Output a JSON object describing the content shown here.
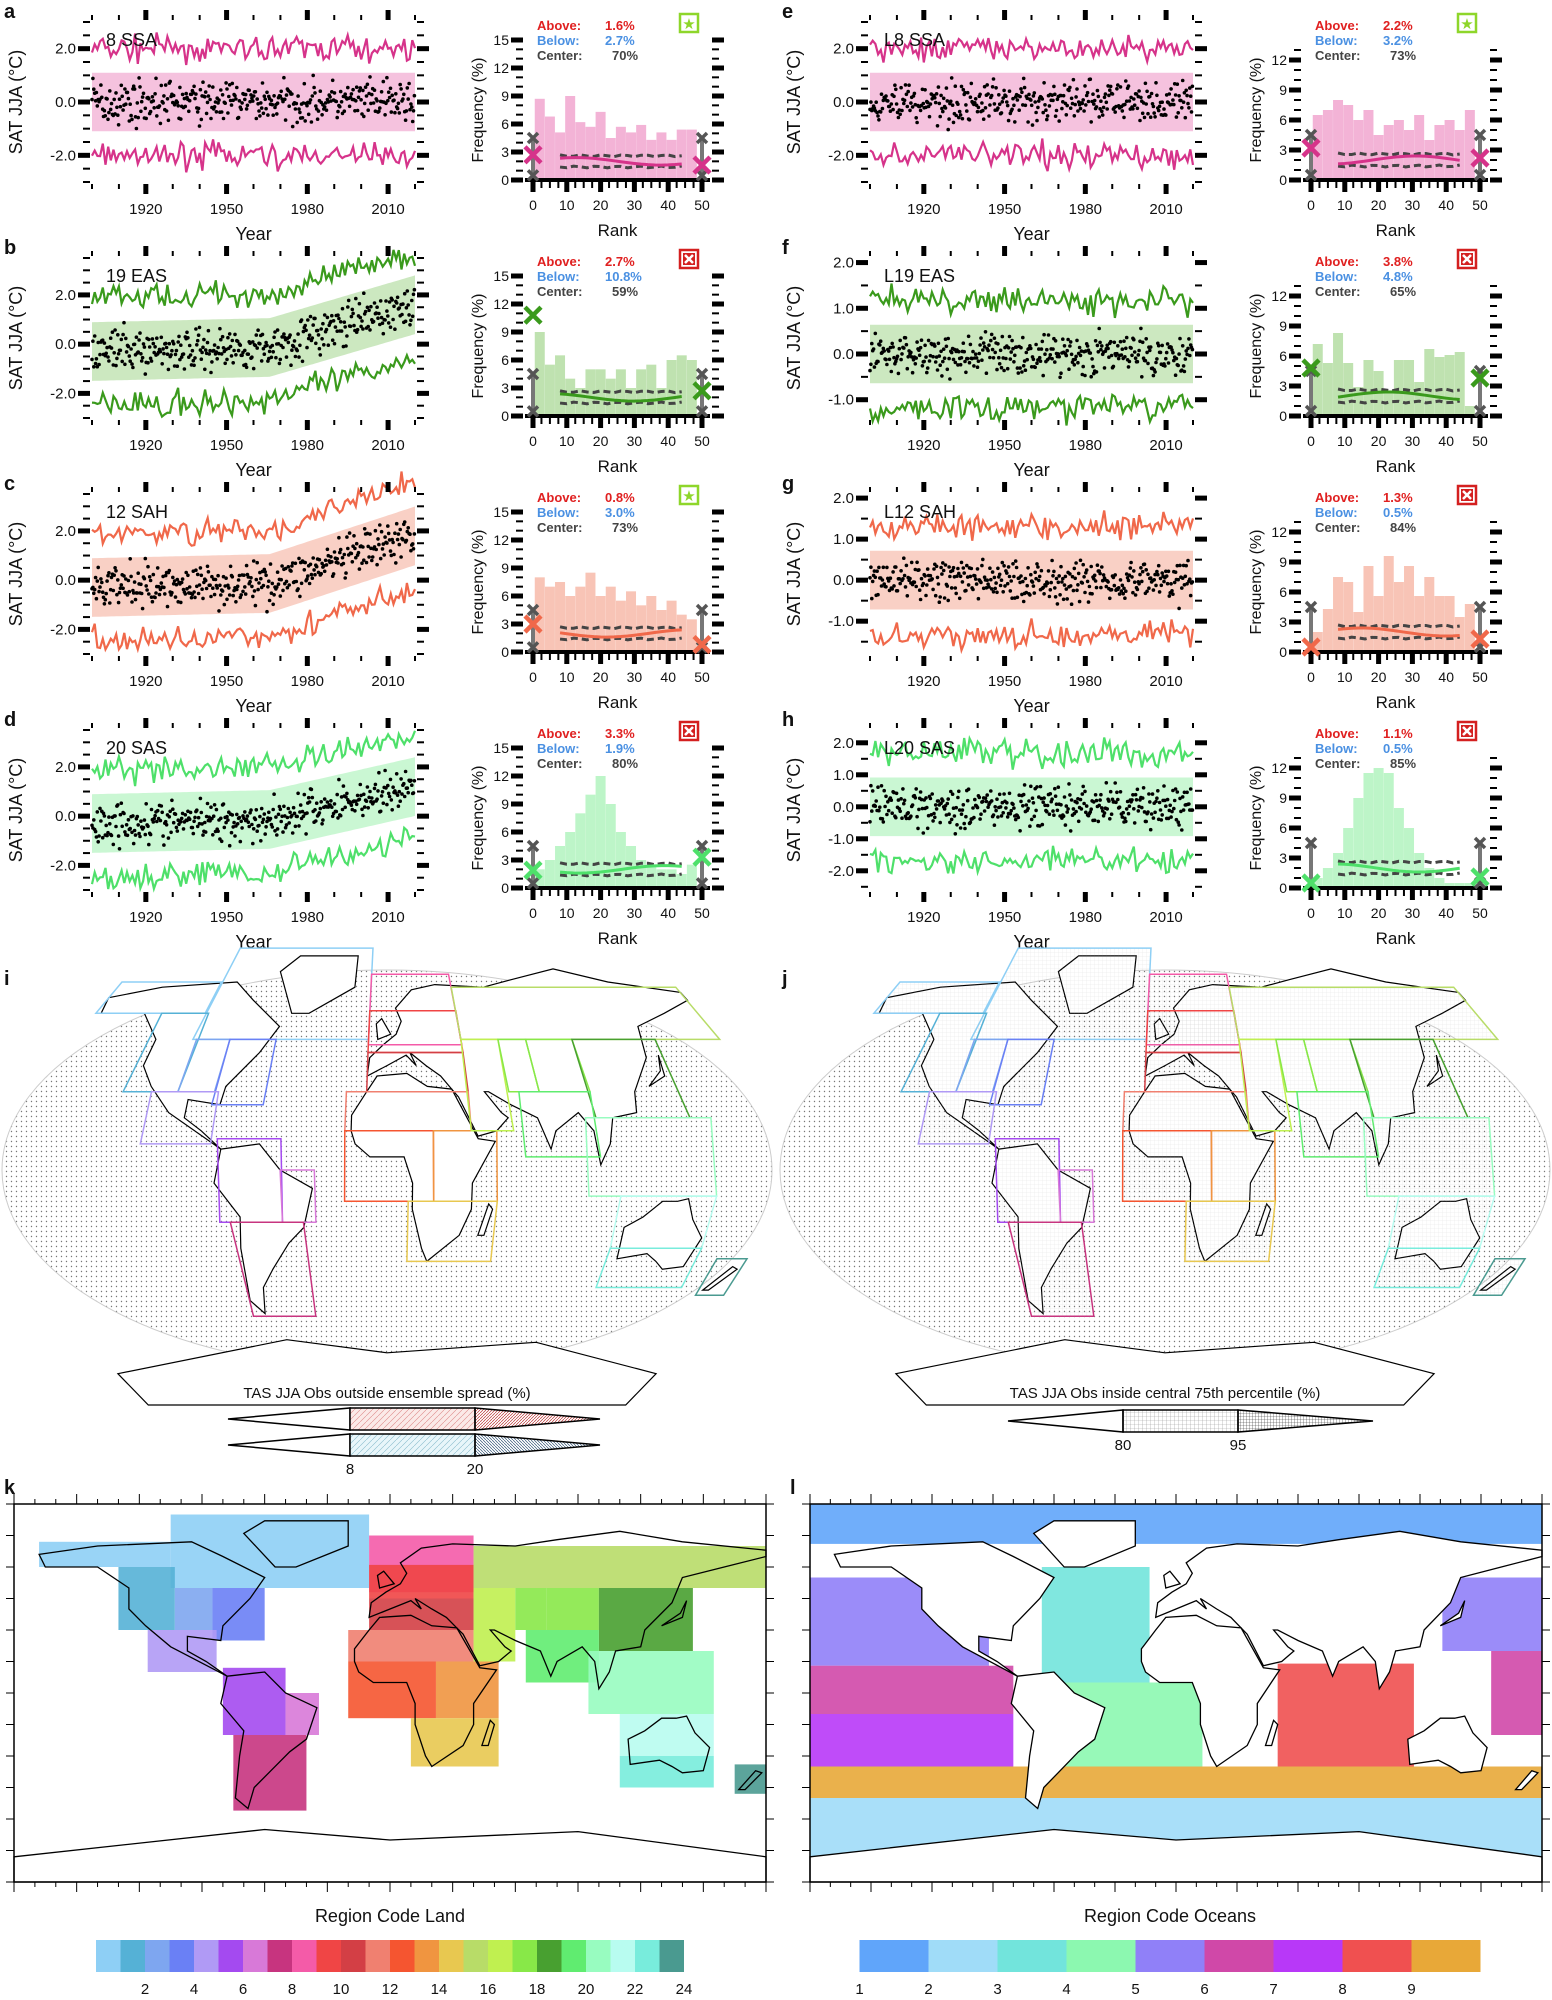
{
  "chart_data": {
    "type": "line",
    "time_series_common": {
      "xlabel": "Year",
      "ylabel": "SAT JJA (°C)",
      "xticks": [
        "1920",
        "1950",
        "1980",
        "2010"
      ],
      "xlim": [
        1900,
        2020
      ]
    },
    "rank_hist_common": {
      "xlabel": "Rank",
      "ylabel": "Frequency (%)",
      "xticks": [
        "0",
        "10",
        "20",
        "30",
        "40",
        "50"
      ],
      "above_label": "Above:",
      "below_label": "Below:",
      "center_label": "Center:"
    },
    "panels": [
      {
        "letter": "a",
        "label": "8 SSA",
        "color": "#d6338a",
        "light": "#f3b3d6",
        "trend": 0.0,
        "ylim": [
          -3,
          3
        ],
        "yticks": [
          "2.0",
          "0.0",
          "-2.0"
        ],
        "ytick_values": [
          2,
          0,
          -2
        ],
        "hist": {
          "above": "1.6%",
          "below": "2.7%",
          "center": "70%",
          "badge": "star",
          "ymax": 15,
          "yticks": [
            "0",
            "3",
            "6",
            "9",
            "12",
            "15"
          ],
          "bars": [
            8.7,
            6.8,
            5.1,
            9.0,
            6.2,
            5.7,
            7.3,
            4.5,
            5.7,
            5.1,
            5.9,
            4.3,
            5.1,
            4.3,
            5.4,
            5.4
          ],
          "obs_rank0": 2.7,
          "obs_rank50": 1.6
        }
      },
      {
        "letter": "b",
        "label": "19 EAS",
        "color": "#3a9a1c",
        "light": "#bfe2b0",
        "trend": 1.6,
        "ylim": [
          -3,
          3.5
        ],
        "yticks": [
          "2.0",
          "0.0",
          "-2.0"
        ],
        "ytick_values": [
          2,
          0,
          -2
        ],
        "hist": {
          "above": "2.7%",
          "below": "10.8%",
          "center": "59%",
          "badge": "cross",
          "ymax": 15,
          "yticks": [
            "0",
            "3",
            "6",
            "9",
            "12",
            "15"
          ],
          "bars": [
            9.0,
            5.5,
            6.5,
            4.0,
            3.0,
            5.0,
            5.0,
            4.0,
            5.0,
            3.0,
            5.0,
            5.5,
            3.0,
            6.0,
            6.5,
            6.0
          ],
          "obs_rank0": 10.8,
          "obs_rank50": 2.7
        }
      },
      {
        "letter": "c",
        "label": "12 SAH",
        "color": "#f0684a",
        "light": "#f8c4b6",
        "trend": 1.8,
        "ylim": [
          -3,
          3.5
        ],
        "yticks": [
          "2.0",
          "0.0",
          "-2.0"
        ],
        "ytick_values": [
          2,
          0,
          -2
        ],
        "hist": {
          "above": "0.8%",
          "below": "3.0%",
          "center": "73%",
          "badge": "star",
          "ymax": 15,
          "yticks": [
            "0",
            "3",
            "6",
            "9",
            "12",
            "15"
          ],
          "bars": [
            8.0,
            7.0,
            7.5,
            6.0,
            7.0,
            8.5,
            6.0,
            7.0,
            5.5,
            6.5,
            5.0,
            6.0,
            4.5,
            5.5,
            4.0,
            3.5
          ],
          "obs_rank0": 3.0,
          "obs_rank50": 0.8
        }
      },
      {
        "letter": "d",
        "label": "20 SAS",
        "color": "#4ee06a",
        "light": "#bdf5c8",
        "trend": 1.2,
        "ylim": [
          -3,
          3.5
        ],
        "yticks": [
          "2.0",
          "0.0",
          "-2.0"
        ],
        "ytick_values": [
          2,
          0,
          -2
        ],
        "hist": {
          "above": "3.3%",
          "below": "1.9%",
          "center": "80%",
          "badge": "cross",
          "ymax": 15,
          "yticks": [
            "0",
            "3",
            "6",
            "9",
            "12",
            "15"
          ],
          "bars": [
            2.0,
            3.0,
            4.5,
            6.0,
            8.0,
            10.0,
            12.0,
            9.0,
            6.0,
            4.5,
            3.0,
            2.5,
            2.0,
            2.0,
            1.5,
            2.5
          ],
          "obs_rank0": 1.9,
          "obs_rank50": 3.3
        }
      },
      {
        "letter": "e",
        "label": "L8 SSA",
        "color": "#d6338a",
        "light": "#f3b3d6",
        "trend": 0.0,
        "ylim": [
          -3,
          3
        ],
        "yticks": [
          "2.0",
          "0.0",
          "-2.0"
        ],
        "ytick_values": [
          2,
          0,
          -2
        ],
        "hist": {
          "above": "2.2%",
          "below": "3.2%",
          "center": "73%",
          "badge": "star",
          "ymax": 14,
          "yticks": [
            "0",
            "3",
            "6",
            "9",
            "12"
          ],
          "bars": [
            6.5,
            7.0,
            8.0,
            7.5,
            6.0,
            7.0,
            4.5,
            5.5,
            6.0,
            5.0,
            6.5,
            4.0,
            5.5,
            6.0,
            5.0,
            7.0
          ],
          "obs_rank0": 3.2,
          "obs_rank50": 2.2
        }
      },
      {
        "letter": "f",
        "label": "L19 EAS",
        "color": "#3a9a1c",
        "light": "#bfe2b0",
        "trend": 0.0,
        "ylim": [
          -1.4,
          2.1
        ],
        "yticks": [
          "2.0",
          "1.0",
          "0.0",
          "-1.0"
        ],
        "ytick_values": [
          2,
          1,
          0,
          -1
        ],
        "hist": {
          "above": "3.8%",
          "below": "4.8%",
          "center": "65%",
          "badge": "cross",
          "ymax": 14,
          "yticks": [
            "0",
            "3",
            "6",
            "9",
            "12"
          ],
          "bars": [
            7.2,
            5.3,
            8.3,
            5.3,
            2.9,
            5.6,
            4.5,
            2.5,
            5.6,
            5.6,
            3.4,
            6.7,
            5.9,
            6.1,
            6.4,
            1.0
          ],
          "obs_rank0": 4.8,
          "obs_rank50": 3.8
        }
      },
      {
        "letter": "g",
        "label": "L12 SAH",
        "color": "#f0684a",
        "light": "#f8c4b6",
        "trend": 0.0,
        "ylim": [
          -1.8,
          2.1
        ],
        "yticks": [
          "2.0",
          "1.0",
          "0.0",
          "-1.0"
        ],
        "ytick_values": [
          2,
          1,
          0,
          -1
        ],
        "hist": {
          "above": "1.3%",
          "below": "0.5%",
          "center": "84%",
          "badge": "cross",
          "ymax": 14,
          "yticks": [
            "0",
            "3",
            "6",
            "9",
            "12"
          ],
          "bars": [
            2.0,
            4.3,
            7.5,
            7.0,
            4.0,
            8.6,
            5.6,
            9.6,
            7.0,
            8.6,
            5.6,
            7.5,
            5.6,
            5.6,
            3.5,
            4.8
          ],
          "obs_rank0": 0.5,
          "obs_rank50": 1.3
        }
      },
      {
        "letter": "h",
        "label": "L20 SAS",
        "color": "#4ee06a",
        "light": "#bdf5c8",
        "trend": 0.0,
        "ylim": [
          -2.6,
          2.4
        ],
        "yticks": [
          "2.0",
          "1.0",
          "0.0",
          "-1.0",
          "-2.0"
        ],
        "ytick_values": [
          2,
          1,
          0,
          -1,
          -2
        ],
        "hist": {
          "above": "1.1%",
          "below": "0.5%",
          "center": "85%",
          "badge": "cross",
          "ymax": 14,
          "yticks": [
            "0",
            "3",
            "6",
            "9",
            "12"
          ],
          "bars": [
            1.0,
            2.0,
            3.5,
            6.0,
            9.0,
            11.5,
            12.0,
            11.5,
            8.0,
            6.0,
            3.5,
            2.0,
            1.0,
            0.5,
            0.5,
            0.5
          ],
          "obs_rank0": 0.5,
          "obs_rank50": 1.1
        }
      }
    ],
    "maps": {
      "i": {
        "letter": "i",
        "title": "TAS JJA Obs outside ensemble spread (%)",
        "ticks": [
          "8",
          "20"
        ]
      },
      "j": {
        "letter": "j",
        "title": "TAS JJA Obs inside central 75th percentile (%)",
        "ticks": [
          "80",
          "95"
        ]
      },
      "k": {
        "letter": "k",
        "title": "Region Code Land",
        "ticks": [
          "2",
          "4",
          "6",
          "8",
          "10",
          "12",
          "14",
          "16",
          "18",
          "20",
          "22",
          "24"
        ],
        "colors": [
          "#8ecff5",
          "#55b1d6",
          "#7ea6f0",
          "#6a80f5",
          "#b09af5",
          "#a44af0",
          "#d879d8",
          "#c7347f",
          "#f45ba8",
          "#f04545",
          "#d33f45",
          "#f08070",
          "#f55530",
          "#f09540",
          "#e8c850",
          "#b8dc68",
          "#c0f050",
          "#88e848",
          "#48a030",
          "#60ec70",
          "#98fcc0",
          "#b8fcf0",
          "#78ecdc",
          "#4a9a90"
        ]
      },
      "l": {
        "letter": "l",
        "title": "Region Code Oceans",
        "ticks": [
          "1",
          "2",
          "3",
          "4",
          "5",
          "6",
          "7",
          "8",
          "9"
        ],
        "colors": [
          "#60a5fa",
          "#a0dcf8",
          "#72e4dc",
          "#8cf8b0",
          "#9080f8",
          "#d048a8",
          "#b838f8",
          "#f05050",
          "#e8a838"
        ]
      }
    }
  }
}
